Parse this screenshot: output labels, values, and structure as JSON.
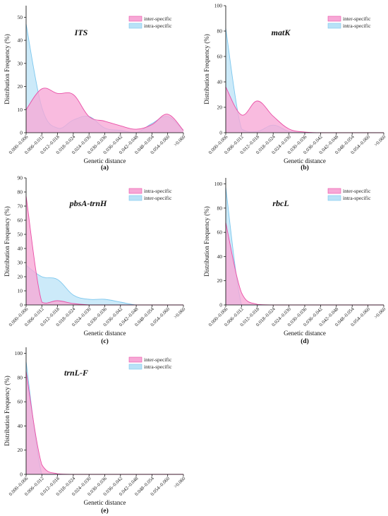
{
  "colors": {
    "pink_fill": "#f7a8d6",
    "pink_line": "#e94fa6",
    "blue_fill": "#b9e2f7",
    "blue_line": "#7cc7ee"
  },
  "chart_data": [
    {
      "type": "area",
      "gene": "ITS",
      "panel_label": "(a)",
      "xlabel": "Genetic distance",
      "ylabel": "Distribution Frequency (%)",
      "ylim": [
        0,
        55
      ],
      "yticks": [
        0,
        10,
        20,
        30,
        40,
        50
      ],
      "categories": [
        "0.000–0.006",
        "0.006–0.012",
        "0.012–0.018",
        "0.018–0.024",
        "0.024–0.030",
        "0.030–0.036",
        "0.036–0.042",
        "0.042–0.048",
        "0.048–0.054",
        "0.054–0.060",
        ">0.060"
      ],
      "series": [
        {
          "name": "inter-specific",
          "color": "pink",
          "values": [
            10,
            19,
            17,
            16.5,
            7,
            5,
            3,
            1.5,
            3.5,
            8,
            1
          ]
        },
        {
          "name": "intra-specific",
          "color": "blue",
          "values": [
            47,
            11,
            2,
            5.5,
            7,
            2,
            1,
            0,
            4,
            7,
            1
          ]
        }
      ]
    },
    {
      "type": "area",
      "gene": "matK",
      "panel_label": "(b)",
      "xlabel": "Genetic distance",
      "ylabel": "Distribution Frequency (%)",
      "ylim": [
        0,
        100
      ],
      "yticks": [
        0,
        20,
        40,
        60,
        80,
        100
      ],
      "categories": [
        "0.000–0.006",
        "0.006–0.012",
        "0.012–0.018",
        "0.018–0.024",
        "0.024–0.030",
        "0.030–0.036",
        "0.036–0.042",
        "0.042–0.048",
        "0.048–0.054",
        "0.054–0.060",
        ">0.060"
      ],
      "series": [
        {
          "name": "inter-specific",
          "color": "pink",
          "values": [
            36,
            14,
            25,
            13,
            3,
            0.5,
            0,
            0,
            0,
            0,
            0
          ]
        },
        {
          "name": "intra-specific",
          "color": "blue",
          "values": [
            82,
            3,
            1,
            6,
            1,
            0,
            0,
            0,
            0,
            0,
            0
          ]
        }
      ]
    },
    {
      "type": "area",
      "gene": "pbsA-trnH",
      "panel_label": "(c)",
      "xlabel": "Genetic distance",
      "ylabel": "Distribution Frequency (%)",
      "ylim": [
        0,
        90
      ],
      "yticks": [
        0,
        10,
        20,
        30,
        40,
        50,
        60,
        70,
        80,
        90
      ],
      "categories": [
        "0.000–0.006",
        "0.006–0.012",
        "0.012–0.018",
        "0.018–0.024",
        "0.024–0.030",
        "0.030–0.036",
        "0.036–0.042",
        "0.042–0.048",
        "0.048–0.054",
        "0.054–0.060",
        ">0.060"
      ],
      "series": [
        {
          "name": "intra-specific",
          "color": "pink",
          "values": [
            77,
            2,
            3,
            1,
            0,
            0,
            0,
            0,
            0,
            0,
            0
          ]
        },
        {
          "name": "inter-specific",
          "color": "blue",
          "values": [
            28,
            20,
            18,
            7,
            4,
            4,
            2,
            0,
            0,
            0,
            0
          ]
        }
      ]
    },
    {
      "type": "area",
      "gene": "rbcL",
      "panel_label": "(d)",
      "xlabel": "Genetic distance",
      "ylabel": "Distribution Frequency (%)",
      "ylim": [
        0,
        105
      ],
      "yticks": [
        0,
        20,
        40,
        60,
        80,
        100
      ],
      "categories": [
        "0.000–0.006",
        "0.006–0.012",
        "0.012–0.018",
        "0.018–0.024",
        "0.024–0.030",
        "0.030–0.036",
        "0.036–0.042",
        "0.042–0.048",
        "0.048–0.054",
        "0.054–0.060",
        ">0.060"
      ],
      "series": [
        {
          "name": "inter-specific",
          "color": "pink",
          "values": [
            68,
            10,
            0.5,
            0,
            0,
            0,
            0,
            0,
            0,
            0,
            0
          ]
        },
        {
          "name": "intra-specific",
          "color": "blue",
          "values": [
            97,
            0,
            0,
            0,
            0,
            0,
            0,
            0,
            0,
            0,
            0
          ]
        }
      ]
    },
    {
      "type": "area",
      "gene": "trnL-F",
      "panel_label": "(e)",
      "xlabel": "Genetic distance",
      "ylabel": "Distribution Frequency (%)",
      "ylim": [
        0,
        105
      ],
      "yticks": [
        0,
        20,
        40,
        60,
        80,
        100
      ],
      "categories": [
        "0.000–0.006",
        "0.006–0.012",
        "0.012–0.018",
        "0.018–0.024",
        "0.024–0.030",
        "0.030–0.036",
        "0.036–0.042",
        "0.042–0.048",
        "0.048–0.054",
        "0.054–0.060",
        ">0.060"
      ],
      "series": [
        {
          "name": "inter-specific",
          "color": "pink",
          "values": [
            85,
            8,
            0.5,
            0,
            0,
            0,
            0,
            0,
            0,
            0,
            0
          ]
        },
        {
          "name": "intra-specific",
          "color": "blue",
          "values": [
            93,
            0,
            0,
            0,
            0,
            0,
            0,
            0,
            0,
            0,
            0
          ]
        }
      ]
    }
  ]
}
